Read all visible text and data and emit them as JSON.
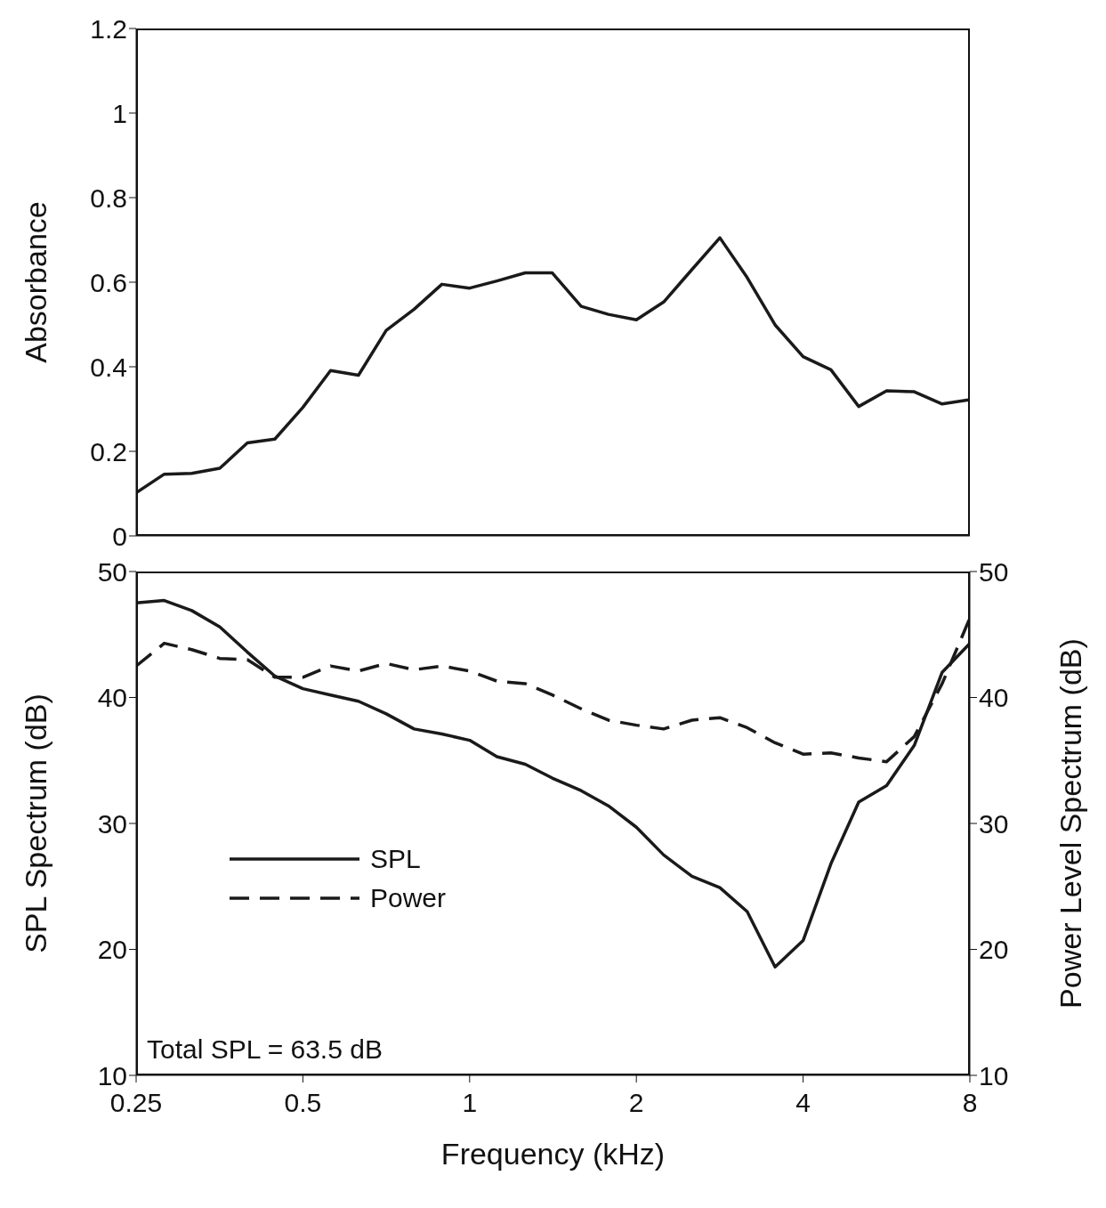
{
  "chart_data": [
    {
      "type": "line",
      "ylabel": "Absorbance",
      "log": "x",
      "xlim": [
        0.25,
        8
      ],
      "xticks": [
        0.25,
        0.5,
        1,
        2,
        4,
        8
      ],
      "ylim": [
        0,
        1.2
      ],
      "yticks": [
        0,
        0.2,
        0.4,
        0.6,
        0.8,
        1,
        1.2
      ],
      "tick_labels": "y",
      "grid": false,
      "legend": false,
      "marker": "none",
      "x": [
        0.25,
        0.281,
        0.315,
        0.354,
        0.397,
        0.445,
        0.5,
        0.561,
        0.63,
        0.707,
        0.794,
        0.891,
        1,
        1.12,
        1.26,
        1.41,
        1.59,
        1.78,
        2,
        2.24,
        2.52,
        2.83,
        3.17,
        3.56,
        4,
        4.49,
        5.04,
        5.66,
        6.35,
        7.13,
        8
      ],
      "series": [
        {
          "color": "#1a1a1a",
          "line_style": "solid",
          "values": [
            0.102,
            0.146,
            0.148,
            0.16,
            0.22,
            0.229,
            0.304,
            0.391,
            0.38,
            0.486,
            0.536,
            0.595,
            0.586,
            0.603,
            0.622,
            0.622,
            0.543,
            0.524,
            0.511,
            0.553,
            0.63,
            0.705,
            0.611,
            0.499,
            0.424,
            0.393,
            0.306,
            0.343,
            0.341,
            0.312,
            0.322
          ]
        }
      ]
    },
    {
      "type": "line",
      "xlabel": "Frequency (kHz)",
      "ylabel": "SPL Spectrum (dB)",
      "y2label": "Power Level Spectrum (dB)",
      "log": "x",
      "xlim": [
        0.25,
        8
      ],
      "xticks": [
        0.25,
        0.5,
        1,
        2,
        4,
        8
      ],
      "ylim": [
        10,
        50
      ],
      "yticks": [
        10,
        20,
        30,
        40,
        50
      ],
      "y2lim": [
        10,
        50
      ],
      "y2ticks": [
        10,
        20,
        30,
        40,
        50
      ],
      "grid": false,
      "legend": "left",
      "marker": "none",
      "annotations": [
        "Total SPL = 63.5 dB"
      ],
      "x": [
        0.25,
        0.281,
        0.315,
        0.354,
        0.397,
        0.445,
        0.5,
        0.561,
        0.63,
        0.707,
        0.794,
        0.891,
        1,
        1.12,
        1.26,
        1.41,
        1.59,
        1.78,
        2,
        2.24,
        2.52,
        2.83,
        3.17,
        3.56,
        4,
        4.49,
        5.04,
        5.66,
        6.35,
        7.13,
        8
      ],
      "series": [
        {
          "name": "SPL",
          "color": "#1a1a1a",
          "line_style": "solid",
          "values": [
            47.5,
            47.7,
            46.9,
            45.6,
            43.6,
            41.7,
            40.7,
            40.2,
            39.7,
            38.7,
            37.5,
            37.1,
            36.6,
            35.3,
            34.7,
            33.6,
            32.6,
            31.4,
            29.7,
            27.5,
            25.8,
            24.9,
            23.0,
            18.6,
            20.7,
            26.8,
            31.7,
            33.0,
            36.2,
            42.0,
            44.3
          ]
        },
        {
          "name": "Power",
          "color": "#1a1a1a",
          "line_style": "dashed",
          "values": [
            42.5,
            44.3,
            43.8,
            43.1,
            43.0,
            41.6,
            41.6,
            42.5,
            42.1,
            42.7,
            42.2,
            42.5,
            42.1,
            41.3,
            41.1,
            40.2,
            39.1,
            38.2,
            37.8,
            37.5,
            38.2,
            38.4,
            37.6,
            36.4,
            35.5,
            35.6,
            35.2,
            34.9,
            36.9,
            41.1,
            46.3
          ]
        }
      ]
    }
  ]
}
